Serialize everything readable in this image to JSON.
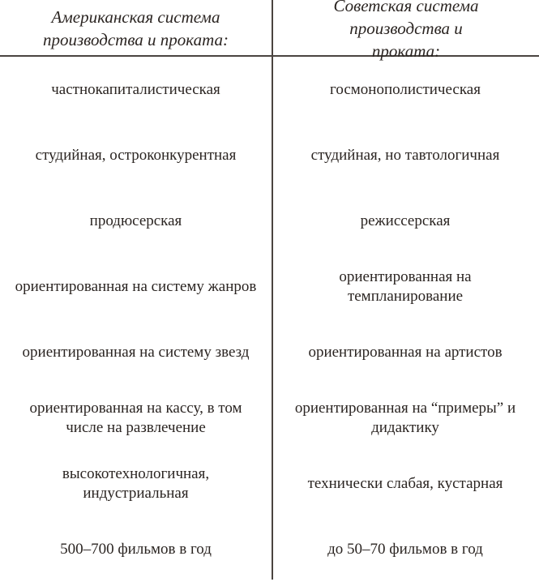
{
  "header": {
    "left": "Американская система производства и проката:",
    "right": "Советская система производства и проката:"
  },
  "rows": [
    {
      "american": "частнокапиталистическая",
      "soviet": "госмонополистическая"
    },
    {
      "american": "студийная, остроконкурентная",
      "soviet": "студийная, но тавтологичная"
    },
    {
      "american": "продюсерская",
      "soviet": "режиссерская"
    },
    {
      "american": "ориентированная на систему жанров",
      "soviet": "ориентированная на темпланирование"
    },
    {
      "american": "ориентированная на систему звезд",
      "soviet": "ориентированная на артистов"
    },
    {
      "american": "ориентированная на кассу, в том числе на развлечение",
      "soviet": "ориентированная на “примеры” и дидактику"
    },
    {
      "american": "высокотехнологичная, индустриальная",
      "soviet": "технически слабая, кустарная"
    },
    {
      "american": "500–700 фильмов в год",
      "soviet": "до 50–70 фильмов в год"
    }
  ]
}
